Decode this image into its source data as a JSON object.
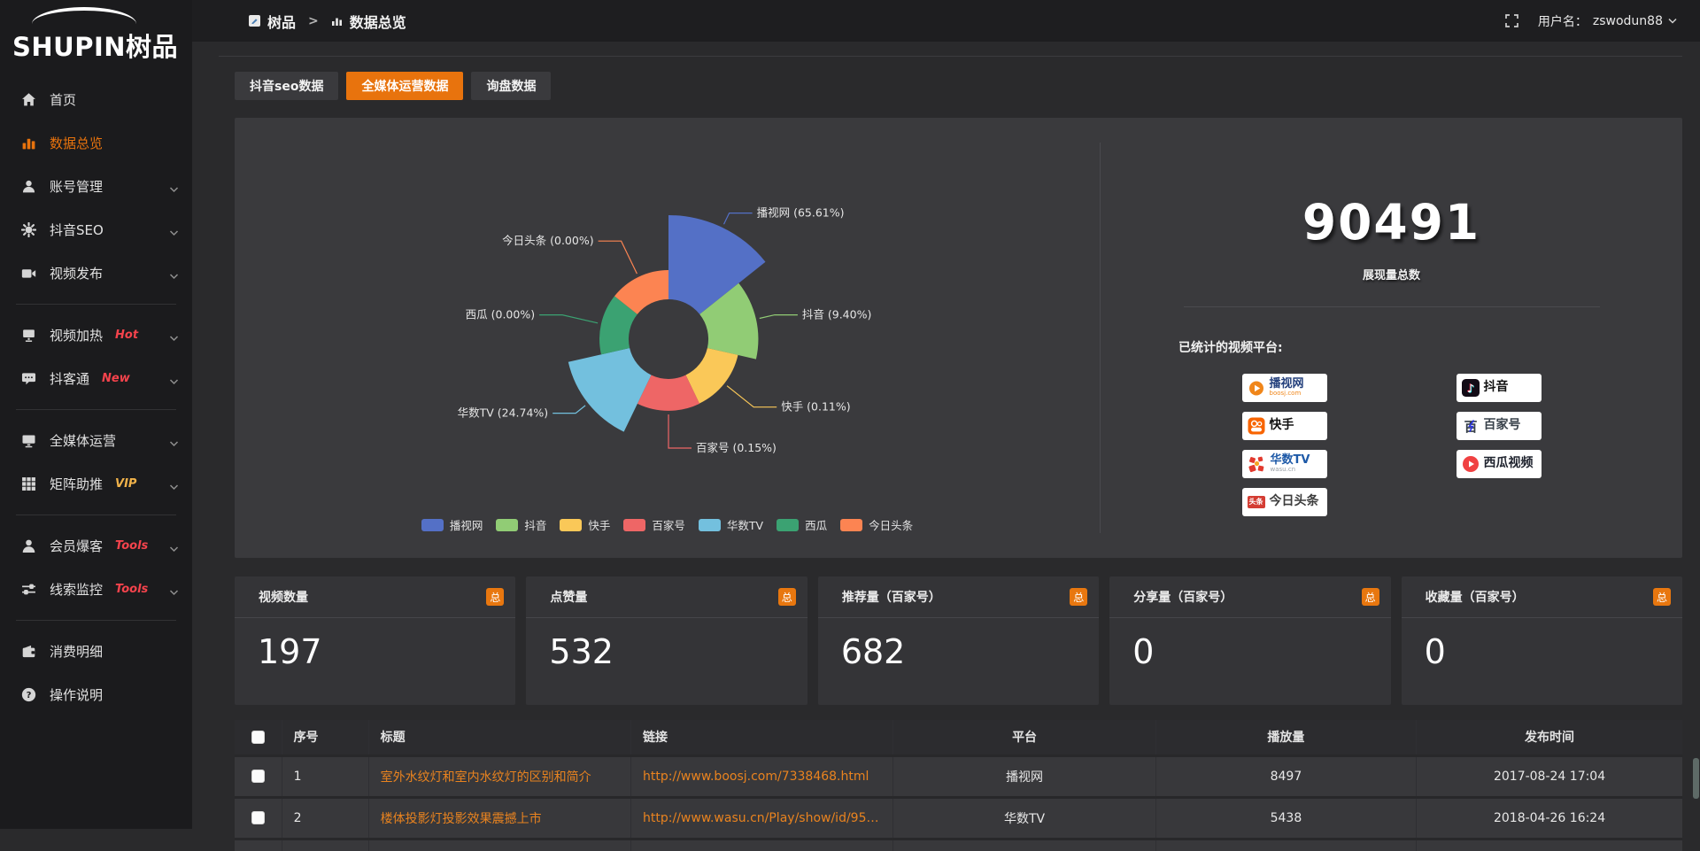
{
  "accent_color": "#e8730d",
  "link_color": "#e9831f",
  "brand": {
    "logo": "SHUPIN树品"
  },
  "topbar": {
    "breadcrumb_root": "树品",
    "breadcrumb_separator": ">",
    "breadcrumb_current": "数据总览",
    "username_label": "用户名：",
    "username": "zswodun88"
  },
  "sidebar": {
    "items": [
      {
        "icon": "home",
        "label": "首页"
      },
      {
        "icon": "chart",
        "label": "数据总览",
        "active": true
      },
      {
        "icon": "user",
        "label": "账号管理",
        "expandable": true
      },
      {
        "icon": "gear",
        "label": "抖音SEO",
        "expandable": true
      },
      {
        "icon": "video",
        "label": "视频发布",
        "expandable": true
      },
      {
        "divider": true
      },
      {
        "icon": "heat",
        "label": "视频加热",
        "tag": "Hot",
        "tag_color": "#f4434c",
        "expandable": true
      },
      {
        "icon": "chat",
        "label": "抖客通",
        "tag": "New",
        "tag_color": "#f4434c",
        "expandable": true
      },
      {
        "divider": true
      },
      {
        "icon": "monitor",
        "label": "全媒体运营",
        "expandable": true
      },
      {
        "icon": "grid",
        "label": "矩阵助推",
        "tag": "VIP",
        "tag_color": "#f0b24a",
        "expandable": true
      },
      {
        "divider": true
      },
      {
        "icon": "member",
        "label": "会员爆客",
        "tag": "Tools",
        "tag_color": "#f4434c",
        "expandable": true
      },
      {
        "icon": "sliders",
        "label": "线索监控",
        "tag": "Tools",
        "tag_color": "#f4434c",
        "expandable": true
      },
      {
        "divider": true
      },
      {
        "icon": "wallet",
        "label": "消费明细"
      },
      {
        "icon": "help",
        "label": "操作说明"
      }
    ]
  },
  "tabs": [
    {
      "label": "抖音seo数据",
      "active": false
    },
    {
      "label": "全媒体运营数据",
      "active": true
    },
    {
      "label": "询盘数据",
      "active": false
    }
  ],
  "chart_data": {
    "type": "pie",
    "style": "nightingale-rose",
    "legend_position": "bottom",
    "label_format": "{name} ({percent}%)",
    "items": [
      {
        "name": "播视网",
        "percent": 65.61,
        "color": "#5470c6"
      },
      {
        "name": "抖音",
        "percent": 9.4,
        "color": "#91cc75"
      },
      {
        "name": "快手",
        "percent": 0.11,
        "color": "#fac858"
      },
      {
        "name": "百家号",
        "percent": 0.15,
        "color": "#ee6666"
      },
      {
        "name": "华数TV",
        "percent": 24.74,
        "color": "#73c0de"
      },
      {
        "name": "西瓜",
        "percent": 0.0,
        "color": "#3ba272"
      },
      {
        "name": "今日头条",
        "percent": 0.0,
        "color": "#fc8452"
      }
    ]
  },
  "summary": {
    "total": "90491",
    "total_label": "展现量总数",
    "platforms_label": "已统计的视频平台:",
    "platform_columns": [
      [
        {
          "key": "boosj",
          "name": "播视网",
          "sub": "boosj.com"
        },
        {
          "key": "kuaishou",
          "name": "快手"
        },
        {
          "key": "wasu",
          "name": "华数TV",
          "sub": "wasu.cn"
        },
        {
          "key": "toutiao",
          "name": "今日头条"
        }
      ],
      [
        {
          "key": "douyin",
          "name": "抖音"
        },
        {
          "key": "baijia",
          "name": "百家号"
        },
        {
          "key": "xigua",
          "name": "西瓜视频"
        }
      ]
    ]
  },
  "cards": [
    {
      "label": "视频数量",
      "badge": "总",
      "value": "197"
    },
    {
      "label": "点赞量",
      "badge": "总",
      "value": "532"
    },
    {
      "label": "推荐量（百家号）",
      "badge": "总",
      "value": "682"
    },
    {
      "label": "分享量（百家号）",
      "badge": "总",
      "value": "0"
    },
    {
      "label": "收藏量（百家号）",
      "badge": "总",
      "value": "0"
    }
  ],
  "table": {
    "headers": [
      "序号",
      "标题",
      "链接",
      "平台",
      "播放量",
      "发布时间"
    ],
    "rows": [
      {
        "index": "1",
        "title": "室外水纹灯和室内水纹灯的区别和简介",
        "link": "http://www.boosj.com/7338468.html",
        "platform": "播视网",
        "views": "8497",
        "time": "2017-08-24 17:04"
      },
      {
        "index": "2",
        "title": "楼体投影灯投影效果震撼上市",
        "link": "http://www.wasu.cn/Play/show/id/952...",
        "platform": "华数TV",
        "views": "5438",
        "time": "2018-04-26 16:24"
      }
    ]
  }
}
